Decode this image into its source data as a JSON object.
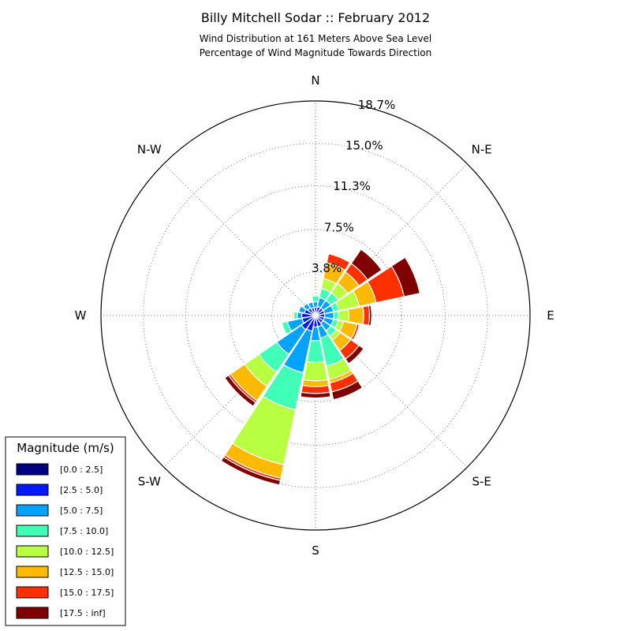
{
  "chart_data": {
    "type": "windrose",
    "title": "Billy Mitchell Sodar :: February 2012",
    "subtitle_lines": [
      "Wind Distribution at 161 Meters Above Sea Level",
      "Percentage of Wind Magnitude Towards Direction"
    ],
    "directions": [
      "N",
      "NNE",
      "NE",
      "ENE",
      "E",
      "ESE",
      "SE",
      "SSE",
      "S",
      "SSW",
      "SW",
      "WSW",
      "W",
      "WNW",
      "NW",
      "NNW"
    ],
    "direction_labels": [
      "N",
      "N-E",
      "E",
      "S-E",
      "S",
      "S-W",
      "W",
      "N-W"
    ],
    "ring_labels": [
      "3.8%",
      "7.5%",
      "11.3%",
      "15.0%",
      "18.7%"
    ],
    "rmax": 18.7,
    "legend": {
      "title": "Magnitude (m/s)",
      "placement": "lower-left",
      "bins": [
        {
          "label": "[0.0 : 2.5]",
          "color": "#000080"
        },
        {
          "label": "[2.5 : 5.0]",
          "color": "#0019ff"
        },
        {
          "label": "[5.0 : 7.5]",
          "color": "#00a4ff"
        },
        {
          "label": "[7.5 : 10.0]",
          "color": "#40ffb7"
        },
        {
          "label": "[10.0 : 12.5]",
          "color": "#b7ff40"
        },
        {
          "label": "[12.5 : 15.0]",
          "color": "#ffb900"
        },
        {
          "label": "[15.0 : 17.5]",
          "color": "#ff3000"
        },
        {
          "label": "[17.5 : inf]",
          "color": "#800000"
        }
      ]
    },
    "series": [
      {
        "name": "[0.0 : 2.5]",
        "values": [
          0.2,
          0.2,
          0.2,
          0.2,
          0.2,
          0.2,
          0.2,
          0.2,
          0.2,
          0.2,
          0.2,
          0.2,
          0.2,
          0.2,
          0.2,
          0.2
        ]
      },
      {
        "name": "[2.5 : 5.0]",
        "values": [
          0.5,
          0.6,
          0.6,
          0.6,
          0.6,
          0.6,
          0.6,
          0.8,
          0.8,
          1.2,
          1.3,
          1.0,
          1.0,
          0.8,
          0.6,
          0.5
        ]
      },
      {
        "name": "[5.0 : 7.5]",
        "values": [
          0.5,
          0.8,
          0.8,
          0.8,
          0.8,
          0.8,
          0.8,
          1.0,
          1.2,
          3.7,
          2.6,
          1.3,
          0.4,
          0.5,
          0.5,
          0.5
        ]
      },
      {
        "name": "[7.5 : 10.0]",
        "values": [
          0.5,
          0.8,
          0.8,
          0.5,
          0.4,
          0.4,
          0.6,
          2.5,
          1.9,
          3.3,
          1.9,
          0.5,
          0.3,
          0.0,
          0.0,
          0.0
        ]
      },
      {
        "name": "[10.0 : 12.5]",
        "values": [
          0.1,
          0.9,
          1.0,
          1.8,
          0.9,
          0.5,
          0.4,
          1.2,
          1.6,
          4.9,
          1.5,
          0.0,
          0.1,
          0.0,
          0.0,
          0.0
        ]
      },
      {
        "name": "[12.5 : 15.0]",
        "values": [
          0.0,
          1.4,
          1.2,
          1.5,
          1.3,
          1.2,
          1.1,
          0.3,
          0.5,
          1.2,
          1.5,
          0.0,
          0.1,
          0.0,
          0.0,
          0.0
        ]
      },
      {
        "name": "[15.0 : 17.5]",
        "values": [
          0.0,
          0.8,
          0.9,
          2.5,
          0.5,
          0.2,
          0.9,
          0.8,
          0.6,
          0.2,
          0.2,
          0.0,
          0.0,
          0.0,
          0.0,
          0.0
        ]
      },
      {
        "name": "[17.5 : inf]",
        "values": [
          0.0,
          0.0,
          1.5,
          1.4,
          0.2,
          0.0,
          0.5,
          0.7,
          0.4,
          0.4,
          0.4,
          0.0,
          0.0,
          0.0,
          0.0,
          0.0
        ]
      }
    ]
  }
}
